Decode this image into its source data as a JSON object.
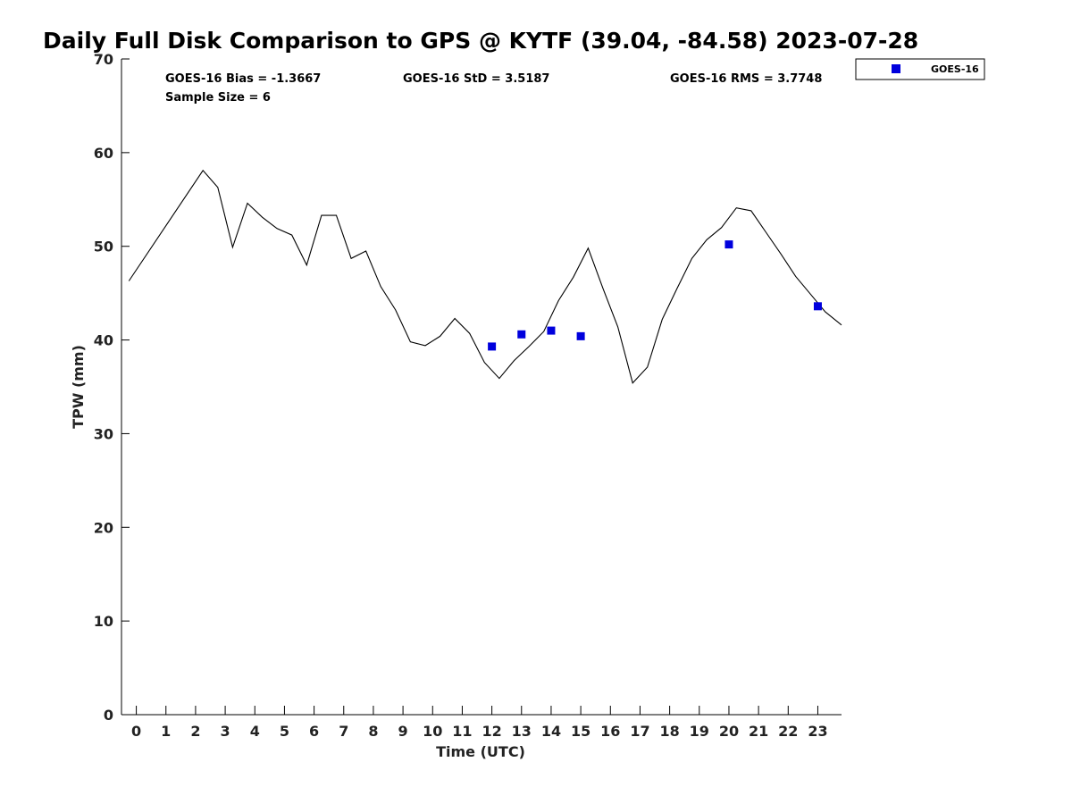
{
  "chart_data": {
    "type": "line",
    "title": "Daily Full Disk Comparison to GPS @ KYTF (39.04, -84.58) 2023-07-28",
    "xlabel": "Time (UTC)",
    "ylabel": "TPW (mm)",
    "xlim": [
      -0.5,
      23.8
    ],
    "ylim": [
      0,
      70
    ],
    "xticks": [
      "0",
      "1",
      "2",
      "3",
      "4",
      "5",
      "6",
      "7",
      "8",
      "9",
      "10",
      "11",
      "12",
      "13",
      "14",
      "15",
      "16",
      "17",
      "18",
      "19",
      "20",
      "21",
      "22",
      "23"
    ],
    "yticks": [
      "0",
      "10",
      "20",
      "30",
      "40",
      "50",
      "60",
      "70"
    ],
    "grid": false,
    "legend_position": "top-right",
    "stats": {
      "bias": "GOES-16 Bias = -1.3667",
      "std": "GOES-16 StD = 3.5187",
      "rms": "GOES-16 RMS = 3.7748",
      "sample_size": "Sample Size = 6"
    },
    "colors": {
      "gps_line": "#000000",
      "goes": "#0000dd"
    },
    "series": [
      {
        "style": "line",
        "x": [
          -0.25,
          2.25,
          2.75,
          3.25,
          3.75,
          4.25,
          4.75,
          5.25,
          5.75,
          6.25,
          6.75,
          7.25,
          7.75,
          8.25,
          8.75,
          9.25,
          9.75,
          10.25,
          10.75,
          11.25,
          11.75,
          12.25,
          12.75,
          13.25,
          13.75,
          14.25,
          14.75,
          15.25,
          15.75,
          16.25,
          16.75,
          17.25,
          17.75,
          18.25,
          18.75,
          19.25,
          19.75,
          20.25,
          20.75,
          21.25,
          21.75,
          22.25,
          22.75,
          23.25,
          23.8
        ],
        "values": [
          46.3,
          58.1,
          56.3,
          49.9,
          54.6,
          53.1,
          51.9,
          51.2,
          48.0,
          53.3,
          53.3,
          48.7,
          49.5,
          45.7,
          43.2,
          39.8,
          39.4,
          40.4,
          42.3,
          40.7,
          37.6,
          35.9,
          37.8,
          39.3,
          40.9,
          44.2,
          46.7,
          49.8,
          45.5,
          41.4,
          35.4,
          37.1,
          42.2,
          45.5,
          48.7,
          50.7,
          52.0,
          54.1,
          53.8,
          51.5,
          49.2,
          46.8,
          44.9,
          43.0,
          41.6
        ]
      },
      {
        "name": "GOES-16",
        "style": "marker",
        "x": [
          12,
          13,
          14,
          15,
          20,
          23
        ],
        "values": [
          39.3,
          40.6,
          41.0,
          40.4,
          50.2,
          43.6
        ]
      }
    ]
  }
}
